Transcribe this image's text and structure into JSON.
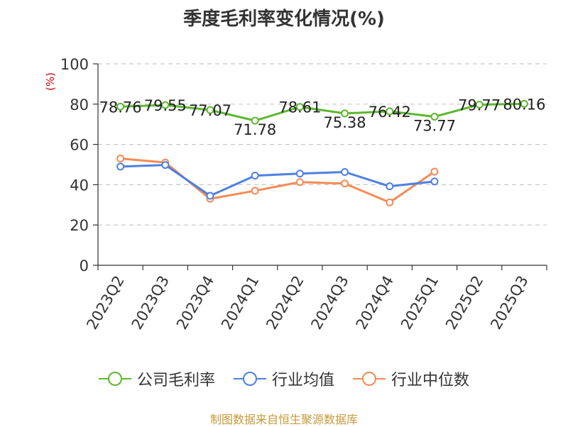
{
  "chart_data": {
    "type": "line",
    "title": "季度毛利率变化情况(%)",
    "unit_label": "(%)",
    "categories": [
      "2023Q2",
      "2023Q3",
      "2023Q4",
      "2024Q1",
      "2024Q2",
      "2024Q3",
      "2024Q4",
      "2025Q1",
      "2025Q2",
      "2025Q3"
    ],
    "ylim": [
      0,
      100
    ],
    "yticks": [
      0,
      20,
      40,
      60,
      80,
      100
    ],
    "grid": true,
    "legend_position": "bottom",
    "series": [
      {
        "name": "公司毛利率",
        "color": "#5cb82e",
        "values": [
          78.76,
          79.55,
          77.07,
          71.78,
          78.61,
          75.38,
          76.42,
          73.77,
          79.77,
          80.16
        ],
        "labels": [
          "78.76",
          "79.55",
          "77.07",
          "71.78",
          "78.61",
          "75.38",
          "76.42",
          "73.77",
          "79.77",
          "80.16"
        ]
      },
      {
        "name": "行业均值",
        "color": "#4e80e0",
        "values": [
          49,
          49.8,
          34.5,
          44.5,
          45.5,
          46.3,
          39.2,
          41.6,
          null,
          null
        ]
      },
      {
        "name": "行业中位数",
        "color": "#f58a55",
        "values": [
          53,
          51,
          33,
          37,
          41.3,
          40.6,
          31.2,
          46.5,
          null,
          null
        ]
      }
    ],
    "source": "制图数据来自恒生聚源数据库"
  }
}
